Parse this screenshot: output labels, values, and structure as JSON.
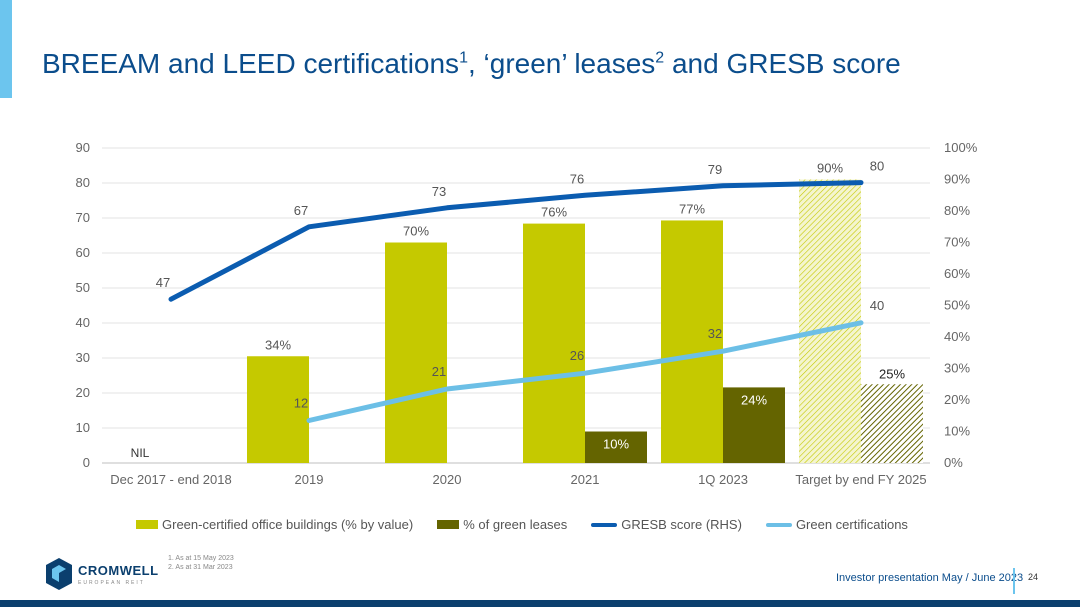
{
  "header": {
    "title_part1": "BREEAM and LEED certifications",
    "sup1": "1",
    "title_part2": ", ‘green’ leases",
    "sup2": "2",
    "title_part3": " and GRESB score"
  },
  "colors": {
    "green_certified": "#c5c900",
    "green_leases": "#646400",
    "gresb": "#0b5cb0",
    "green_certifications": "#6cbfe6",
    "title": "#0b4d8c"
  },
  "chart_data": {
    "type": "bar",
    "categories": [
      "Dec 2017 - end 2018",
      "2019",
      "2020",
      "2021",
      "1Q 2023",
      "Target by end FY 2025"
    ],
    "left_axis": {
      "min": 0,
      "max": 90,
      "ticks": [
        "0",
        "10",
        "20",
        "30",
        "40",
        "50",
        "60",
        "70",
        "80",
        "90"
      ]
    },
    "right_axis": {
      "min": 0,
      "max": 100,
      "ticks": [
        "0%",
        "10%",
        "20%",
        "30%",
        "40%",
        "50%",
        "60%",
        "70%",
        "80%",
        "90%",
        "100%"
      ]
    },
    "grid": true,
    "legend_position": "bottom",
    "series": [
      {
        "name": "Green-certified office buildings (% by value)",
        "kind": "bar",
        "axis": "left",
        "values": [
          null,
          30.5,
          63,
          68.4,
          69.3,
          81
        ],
        "labels": [
          "NIL",
          "34%",
          "70%",
          "76%",
          "77%",
          "90%"
        ]
      },
      {
        "name": "% of green leases",
        "kind": "bar",
        "axis": "left",
        "values": [
          null,
          null,
          null,
          9,
          21.6,
          22.5
        ],
        "labels": [
          "",
          "",
          "",
          "10%",
          "24%",
          "25%"
        ]
      },
      {
        "name": "GRESB score (RHS)",
        "kind": "line",
        "axis": "right",
        "values": [
          52,
          75,
          81,
          85,
          88,
          89
        ],
        "labels": [
          "47",
          "67",
          "73",
          "76",
          "79",
          "80"
        ]
      },
      {
        "name": "Green certifications",
        "kind": "line",
        "axis": "right",
        "values": [
          null,
          13.5,
          23.5,
          28.5,
          35.5,
          44.5
        ],
        "labels": [
          "",
          "12",
          "21",
          "26",
          "32",
          "40"
        ]
      }
    ]
  },
  "footnotes": [
    "1.    As at 15 May 2023",
    "2.    As at 31 Mar 2023"
  ],
  "logo": {
    "name": "CROMWELL",
    "subtitle": "EUROPEAN REIT"
  },
  "footer": {
    "text": "Investor presentation May / June 2023",
    "page": "24"
  }
}
